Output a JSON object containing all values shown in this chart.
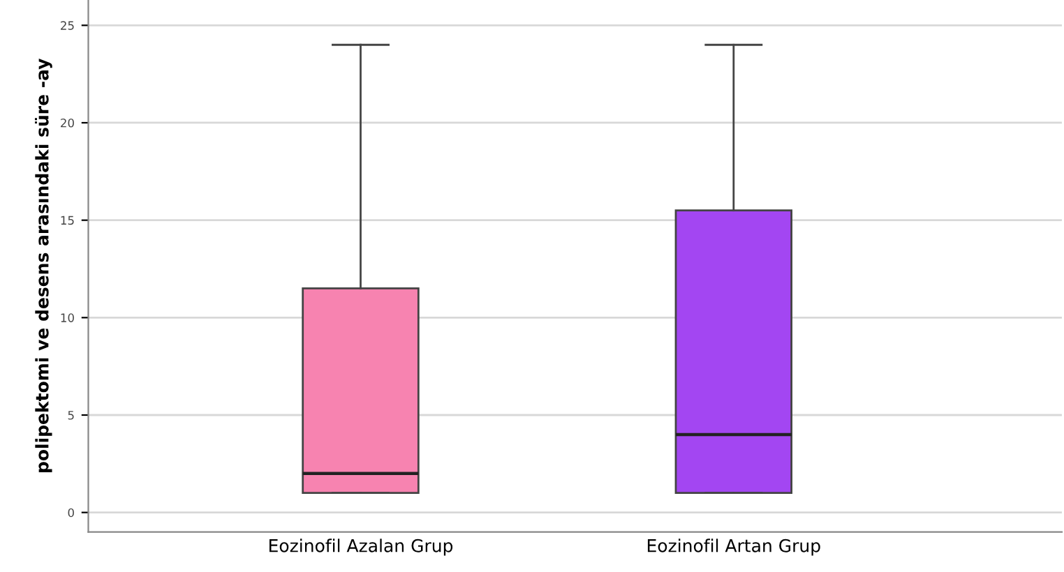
{
  "chart_data": {
    "type": "box",
    "ylabel": "polipektomi ve desens arasındaki süre -ay",
    "categories": [
      "Eozinofil Azalan Grup",
      "Eozinofil Artan Grup"
    ],
    "series": [
      {
        "colors": [
          "#f783b0",
          "#a346f2"
        ],
        "boxes": [
          {
            "low": 1,
            "q1": 1,
            "median": 2,
            "q3": 11.5,
            "high": 24
          },
          {
            "low": 1,
            "q1": 1,
            "median": 4,
            "q3": 15.5,
            "high": 24
          }
        ]
      }
    ],
    "ylim": [
      -1,
      26.3
    ],
    "yticks": [
      0,
      5,
      10,
      15,
      20,
      25
    ],
    "grid": "y"
  }
}
